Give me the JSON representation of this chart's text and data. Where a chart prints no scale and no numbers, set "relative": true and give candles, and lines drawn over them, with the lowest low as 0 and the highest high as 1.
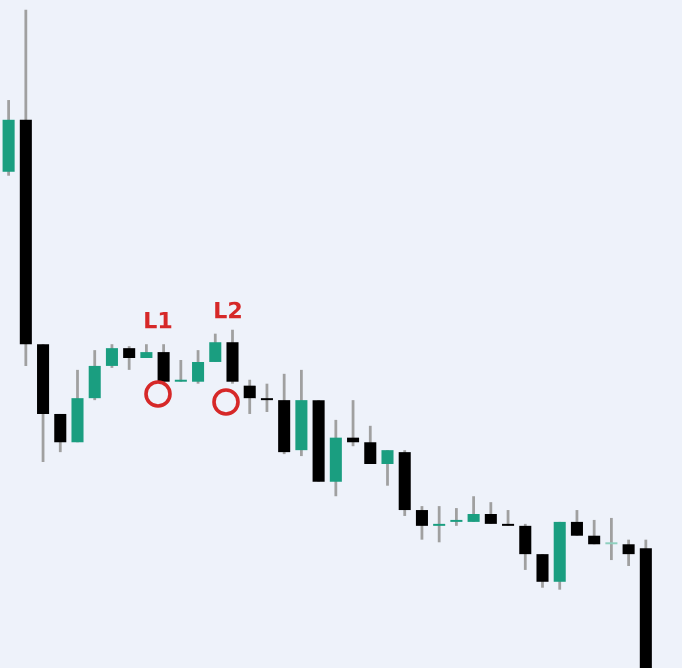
{
  "chart_data": {
    "type": "candlestick",
    "relative": true,
    "categories": [
      null,
      null,
      null,
      null,
      null,
      null,
      null,
      null,
      null,
      null,
      null,
      null,
      null,
      null,
      null,
      null,
      null,
      null,
      null,
      null,
      null,
      null,
      null,
      null,
      null,
      null,
      null,
      null,
      null,
      null,
      null,
      null,
      null,
      null,
      null,
      null,
      null,
      null
    ],
    "ohlc": [
      [
        0.754,
        0.863,
        0.748,
        0.833
      ],
      [
        0.833,
        1,
        0.459,
        0.492
      ],
      [
        0.492,
        0.492,
        0.313,
        0.386
      ],
      [
        0.386,
        0.386,
        0.328,
        0.343
      ],
      [
        0.343,
        0.453,
        0.343,
        0.41
      ],
      [
        0.41,
        0.483,
        0.407,
        0.459
      ],
      [
        0.459,
        0.492,
        0.456,
        0.486
      ],
      [
        0.486,
        0.489,
        0.453,
        0.471
      ],
      [
        0.471,
        0.492,
        0.471,
        0.48
      ],
      [
        0.48,
        0.492,
        0.435,
        0.435
      ],
      [
        0.435,
        0.468,
        0.435,
        0.438
      ],
      [
        0.435,
        0.483,
        0.432,
        0.465
      ],
      [
        0.465,
        0.508,
        0.465,
        0.495
      ],
      [
        0.495,
        0.514,
        0.432,
        0.435
      ],
      [
        0.429,
        0.438,
        0.386,
        0.41
      ],
      [
        0.41,
        0.432,
        0.389,
        0.407
      ],
      [
        0.407,
        0.447,
        0.325,
        0.328
      ],
      [
        0.331,
        0.453,
        0.322,
        0.407
      ],
      [
        0.407,
        0.407,
        0.283,
        0.283
      ],
      [
        0.283,
        0.377,
        0.261,
        0.35
      ],
      [
        0.35,
        0.407,
        0.337,
        0.343
      ],
      [
        0.343,
        0.368,
        0.31,
        0.31
      ],
      [
        0.31,
        0.331,
        0.277,
        0.331
      ],
      [
        0.328,
        0.331,
        0.231,
        0.24
      ],
      [
        0.24,
        0.246,
        0.195,
        0.216
      ],
      [
        0.216,
        0.246,
        0.191,
        0.219
      ],
      [
        0.222,
        0.243,
        0.216,
        0.225
      ],
      [
        0.222,
        0.261,
        0.222,
        0.234
      ],
      [
        0.234,
        0.252,
        0.219,
        0.219
      ],
      [
        0.219,
        0.24,
        0.216,
        0.216
      ],
      [
        0.216,
        0.219,
        0.149,
        0.173
      ],
      [
        0.173,
        0.173,
        0.122,
        0.131
      ],
      [
        0.131,
        0.222,
        0.119,
        0.222
      ],
      [
        0.222,
        0.24,
        0.201,
        0.201
      ],
      [
        0.201,
        0.225,
        0.188,
        0.188
      ],
      [
        0.188,
        0.228,
        0.164,
        0.191
      ],
      [
        0.188,
        0.195,
        0.155,
        0.173
      ],
      [
        0.182,
        0.195,
        0,
        0
      ]
    ],
    "colors": [
      "#1a9e80",
      "#000000",
      "#000000",
      "#000000",
      "#1a9e80",
      "#1a9e80",
      "#1a9e80",
      "#000000",
      "#1a9e80",
      "#000000",
      "#1a9e80",
      "#1a9e80",
      "#1a9e80",
      "#000000",
      "#000000",
      "#000000",
      "#000000",
      "#1a9e80",
      "#000000",
      "#1a9e80",
      "#000000",
      "#000000",
      "#1a9e80",
      "#000000",
      "#000000",
      "#1a9e80",
      "#1a9e80",
      "#1a9e80",
      "#000000",
      "#000000",
      "#000000",
      "#000000",
      "#1a9e80",
      "#000000",
      "#000000",
      "#8fd0bf",
      "#000000",
      "#000000"
    ],
    "annotations": [
      "L1",
      "L2"
    ]
  }
}
